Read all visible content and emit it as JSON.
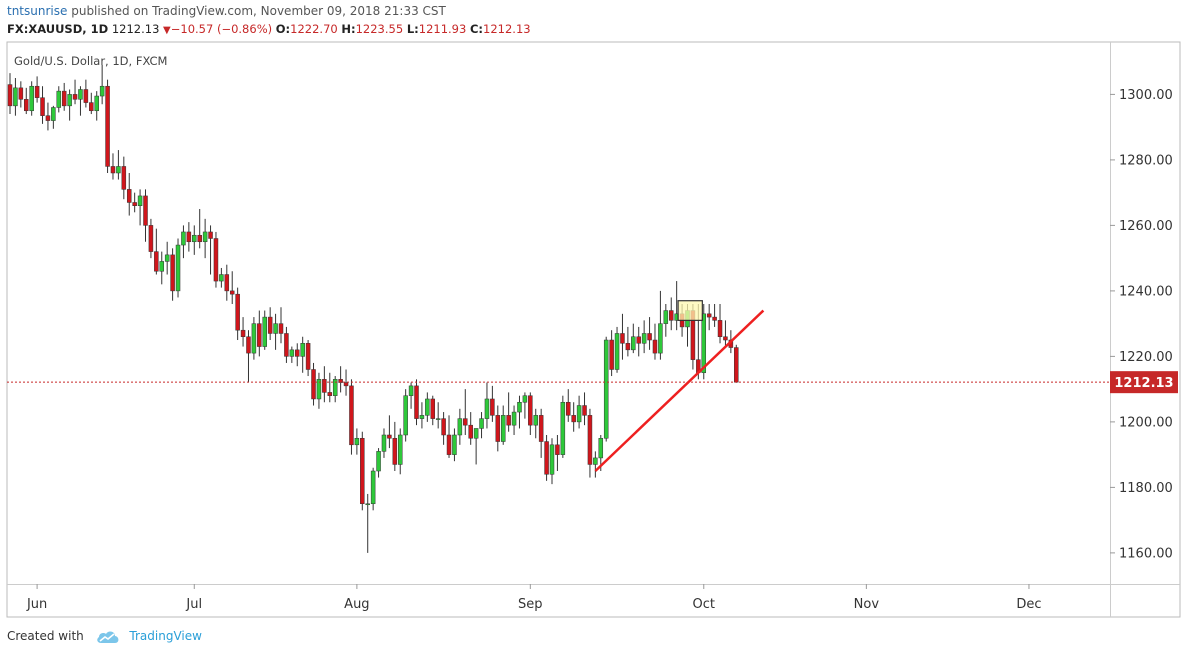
{
  "header": {
    "user": "tntsunrise",
    "published_text": "published on TradingView.com, November 09, 2018 21:33 CST",
    "symbol": "FX:XAUUSD, 1D",
    "last": "1212.13",
    "change": "−10.57 (−0.86%)",
    "down_icon": "triangle-down-icon",
    "o_label": "O:",
    "o_value": "1222.70",
    "h_label": "H:",
    "h_value": "1223.55",
    "l_label": "L:",
    "l_value": "1211.93",
    "c_label": "C:",
    "c_value": "1212.13"
  },
  "footer": {
    "created_with": "Created with",
    "brand": "TradingView",
    "logo_icon": "tradingview-cloud-icon"
  },
  "colors": {
    "up": "#2ec83a",
    "down": "#d0161c",
    "wick": "#333333",
    "trendline": "#ee2020",
    "price_line": "#c62828",
    "highlight_fill": "#fff8b0"
  },
  "chart_data": {
    "type": "candlestick",
    "title": "Gold/U.S. Dollar, 1D, FXCM",
    "y_ticks": [
      "1300.00",
      "1280.00",
      "1260.00",
      "1240.00",
      "1220.00",
      "1200.00",
      "1180.00",
      "1160.00"
    ],
    "ylim": [
      1150.5,
      1316
    ],
    "x_ticks": [
      "Jun",
      "Jul",
      "Aug",
      "Sep",
      "Oct",
      "Nov",
      "Dec"
    ],
    "last_price_label": "1212.13",
    "last_price": 1212.13,
    "trendline": {
      "from": {
        "candle": 108,
        "price": 1185
      },
      "to": {
        "candle": 139,
        "price": 1234
      }
    },
    "highlight_box": {
      "candles": [
        124,
        127
      ],
      "price_low": 1231,
      "price_high": 1237
    },
    "candles": [
      [
        1303.0,
        1306.5,
        1294.0,
        1296.5
      ],
      [
        1296.5,
        1305.0,
        1293.5,
        1302.0
      ],
      [
        1302.0,
        1304.0,
        1296.0,
        1298.5
      ],
      [
        1298.5,
        1302.0,
        1294.0,
        1295.0
      ],
      [
        1295.0,
        1304.0,
        1293.5,
        1302.5
      ],
      [
        1302.5,
        1305.5,
        1297.5,
        1299.0
      ],
      [
        1299.0,
        1302.5,
        1291.0,
        1293.5
      ],
      [
        1293.5,
        1297.5,
        1289.0,
        1292.0
      ],
      [
        1292.0,
        1296.5,
        1289.5,
        1296.0
      ],
      [
        1296.0,
        1302.5,
        1294.5,
        1301.0
      ],
      [
        1301.0,
        1303.5,
        1295.0,
        1296.5
      ],
      [
        1296.5,
        1301.5,
        1292.0,
        1300.0
      ],
      [
        1300.0,
        1304.5,
        1297.0,
        1298.5
      ],
      [
        1298.5,
        1302.5,
        1293.5,
        1301.5
      ],
      [
        1301.5,
        1304.5,
        1296.0,
        1297.5
      ],
      [
        1297.5,
        1300.5,
        1294.0,
        1295.0
      ],
      [
        1295.0,
        1301.0,
        1292.0,
        1299.5
      ],
      [
        1299.5,
        1309.0,
        1297.0,
        1302.5
      ],
      [
        1302.5,
        1304.5,
        1276.0,
        1278.0
      ],
      [
        1278.0,
        1282.0,
        1274.0,
        1276.0
      ],
      [
        1276.0,
        1283.0,
        1274.0,
        1278.0
      ],
      [
        1278.0,
        1281.0,
        1268.0,
        1271.0
      ],
      [
        1271.0,
        1276.0,
        1263.0,
        1267.0
      ],
      [
        1267.0,
        1270.0,
        1264.0,
        1266.0
      ],
      [
        1266.0,
        1271.0,
        1260.0,
        1269.0
      ],
      [
        1269.0,
        1271.0,
        1255.0,
        1260.0
      ],
      [
        1260.0,
        1262.0,
        1250.0,
        1252.0
      ],
      [
        1252.0,
        1259.0,
        1245.0,
        1246.0
      ],
      [
        1246.0,
        1252.0,
        1242.0,
        1249.0
      ],
      [
        1249.0,
        1255.0,
        1245.0,
        1251.0
      ],
      [
        1251.0,
        1253.0,
        1237.0,
        1240.0
      ],
      [
        1240.0,
        1256.0,
        1238.0,
        1254.0
      ],
      [
        1254.0,
        1260.0,
        1250.0,
        1258.0
      ],
      [
        1258.0,
        1261.0,
        1252.0,
        1255.0
      ],
      [
        1255.0,
        1260.0,
        1251.0,
        1257.0
      ],
      [
        1257.0,
        1265.0,
        1253.0,
        1255.0
      ],
      [
        1255.0,
        1262.0,
        1250.0,
        1258.0
      ],
      [
        1258.0,
        1260.0,
        1245.0,
        1256.0
      ],
      [
        1256.0,
        1258.0,
        1241.0,
        1243.0
      ],
      [
        1243.0,
        1247.0,
        1241.0,
        1245.0
      ],
      [
        1245.0,
        1248.0,
        1237.0,
        1240.0
      ],
      [
        1240.0,
        1246.0,
        1236.0,
        1239.0
      ],
      [
        1239.0,
        1241.0,
        1225.0,
        1228.0
      ],
      [
        1228.0,
        1232.0,
        1223.0,
        1226.0
      ],
      [
        1226.0,
        1228.0,
        1212.0,
        1221.0
      ],
      [
        1221.0,
        1232.0,
        1219.0,
        1230.0
      ],
      [
        1230.0,
        1234.0,
        1220.0,
        1223.0
      ],
      [
        1223.0,
        1234.0,
        1222.0,
        1232.0
      ],
      [
        1232.0,
        1235.0,
        1225.0,
        1227.0
      ],
      [
        1227.0,
        1233.0,
        1222.0,
        1230.0
      ],
      [
        1230.0,
        1235.0,
        1224.0,
        1227.0
      ],
      [
        1227.0,
        1229.0,
        1218.0,
        1220.0
      ],
      [
        1220.0,
        1223.0,
        1218.0,
        1222.0
      ],
      [
        1222.0,
        1224.0,
        1217.0,
        1220.0
      ],
      [
        1220.0,
        1226.0,
        1215.0,
        1224.0
      ],
      [
        1224.0,
        1225.0,
        1214.0,
        1216.0
      ],
      [
        1216.0,
        1218.0,
        1205.0,
        1207.0
      ],
      [
        1207.0,
        1215.0,
        1204.0,
        1213.0
      ],
      [
        1213.0,
        1217.0,
        1206.0,
        1209.0
      ],
      [
        1209.0,
        1215.0,
        1206.0,
        1208.0
      ],
      [
        1208.0,
        1214.0,
        1206.0,
        1213.0
      ],
      [
        1213.0,
        1217.0,
        1209.0,
        1212.0
      ],
      [
        1212.0,
        1216.0,
        1208.0,
        1211.0
      ],
      [
        1211.0,
        1213.0,
        1190.0,
        1193.0
      ],
      [
        1193.0,
        1198.0,
        1190.0,
        1195.0
      ],
      [
        1195.0,
        1197.0,
        1173.0,
        1175.0
      ],
      [
        1175.0,
        1178.0,
        1160.0,
        1175.0
      ],
      [
        1175.0,
        1186.0,
        1173.0,
        1185.0
      ],
      [
        1185.0,
        1192.0,
        1183.0,
        1191.0
      ],
      [
        1191.0,
        1198.0,
        1189.0,
        1196.0
      ],
      [
        1196.0,
        1202.0,
        1192.0,
        1195.0
      ],
      [
        1195.0,
        1200.0,
        1185.0,
        1187.0
      ],
      [
        1187.0,
        1198.0,
        1184.0,
        1196.0
      ],
      [
        1196.0,
        1210.0,
        1194.0,
        1208.0
      ],
      [
        1208.0,
        1212.0,
        1204.0,
        1211.0
      ],
      [
        1211.0,
        1213.0,
        1199.0,
        1201.0
      ],
      [
        1201.0,
        1206.0,
        1198.0,
        1202.0
      ],
      [
        1202.0,
        1209.0,
        1200.0,
        1207.0
      ],
      [
        1207.0,
        1208.0,
        1199.0,
        1201.0
      ],
      [
        1201.0,
        1206.0,
        1198.0,
        1201.0
      ],
      [
        1201.0,
        1203.0,
        1193.0,
        1196.0
      ],
      [
        1196.0,
        1202.0,
        1189.0,
        1190.0
      ],
      [
        1190.0,
        1198.0,
        1188.0,
        1196.0
      ],
      [
        1196.0,
        1204.0,
        1193.0,
        1201.0
      ],
      [
        1201.0,
        1210.0,
        1196.0,
        1199.0
      ],
      [
        1199.0,
        1203.0,
        1193.0,
        1195.0
      ],
      [
        1195.0,
        1198.0,
        1187.0,
        1198.0
      ],
      [
        1198.0,
        1203.0,
        1195.0,
        1201.0
      ],
      [
        1201.0,
        1212.0,
        1198.0,
        1207.0
      ],
      [
        1207.0,
        1211.0,
        1200.0,
        1202.0
      ],
      [
        1202.0,
        1205.0,
        1191.0,
        1194.0
      ],
      [
        1194.0,
        1205.0,
        1193.0,
        1202.0
      ],
      [
        1202.0,
        1209.0,
        1197.0,
        1199.0
      ],
      [
        1199.0,
        1205.0,
        1196.0,
        1203.0
      ],
      [
        1203.0,
        1208.0,
        1198.0,
        1206.0
      ],
      [
        1206.0,
        1209.0,
        1201.0,
        1208.0
      ],
      [
        1208.0,
        1209.0,
        1196.0,
        1199.0
      ],
      [
        1199.0,
        1204.0,
        1195.0,
        1202.0
      ],
      [
        1202.0,
        1204.0,
        1189.0,
        1194.0
      ],
      [
        1194.0,
        1196.0,
        1182.0,
        1184.0
      ],
      [
        1184.0,
        1195.0,
        1181.0,
        1193.0
      ],
      [
        1193.0,
        1196.0,
        1185.0,
        1190.0
      ],
      [
        1190.0,
        1208.0,
        1189.0,
        1206.0
      ],
      [
        1206.0,
        1210.0,
        1200.0,
        1202.0
      ],
      [
        1202.0,
        1206.0,
        1197.0,
        1200.0
      ],
      [
        1200.0,
        1208.0,
        1198.0,
        1205.0
      ],
      [
        1205.0,
        1209.0,
        1199.0,
        1202.0
      ],
      [
        1202.0,
        1204.0,
        1183.0,
        1187.0
      ],
      [
        1187.0,
        1191.0,
        1183.0,
        1189.0
      ],
      [
        1189.0,
        1196.0,
        1185.0,
        1195.0
      ],
      [
        1195.0,
        1226.0,
        1194.0,
        1225.0
      ],
      [
        1225.0,
        1228.0,
        1214.0,
        1216.0
      ],
      [
        1216.0,
        1229.0,
        1215.0,
        1227.0
      ],
      [
        1227.0,
        1233.0,
        1219.0,
        1224.0
      ],
      [
        1224.0,
        1229.0,
        1220.0,
        1222.0
      ],
      [
        1222.0,
        1230.0,
        1221.0,
        1226.0
      ],
      [
        1226.0,
        1229.0,
        1220.0,
        1224.0
      ],
      [
        1224.0,
        1231.0,
        1221.0,
        1227.0
      ],
      [
        1227.0,
        1232.0,
        1222.0,
        1225.0
      ],
      [
        1225.0,
        1230.0,
        1219.0,
        1221.0
      ],
      [
        1221.0,
        1240.0,
        1219.0,
        1230.0
      ],
      [
        1230.0,
        1236.0,
        1226.0,
        1234.0
      ],
      [
        1234.0,
        1238.0,
        1228.0,
        1231.0
      ],
      [
        1231.0,
        1243.0,
        1228.0,
        1233.0
      ],
      [
        1233.0,
        1236.0,
        1226.0,
        1229.0
      ],
      [
        1229.0,
        1236.0,
        1223.0,
        1234.0
      ],
      [
        1234.0,
        1236.0,
        1216.0,
        1219.0
      ],
      [
        1219.0,
        1236.0,
        1213.0,
        1215.0
      ],
      [
        1215.0,
        1236.0,
        1213.0,
        1233.0
      ],
      [
        1233.0,
        1236.0,
        1228.0,
        1232.0
      ],
      [
        1232.0,
        1236.0,
        1229.0,
        1231.0
      ],
      [
        1231.0,
        1236.0,
        1224.0,
        1226.0
      ],
      [
        1226.0,
        1231.0,
        1223.0,
        1225.0
      ],
      [
        1225.0,
        1228.0,
        1221.0,
        1222.7
      ],
      [
        1222.7,
        1223.55,
        1211.93,
        1212.13
      ]
    ]
  }
}
